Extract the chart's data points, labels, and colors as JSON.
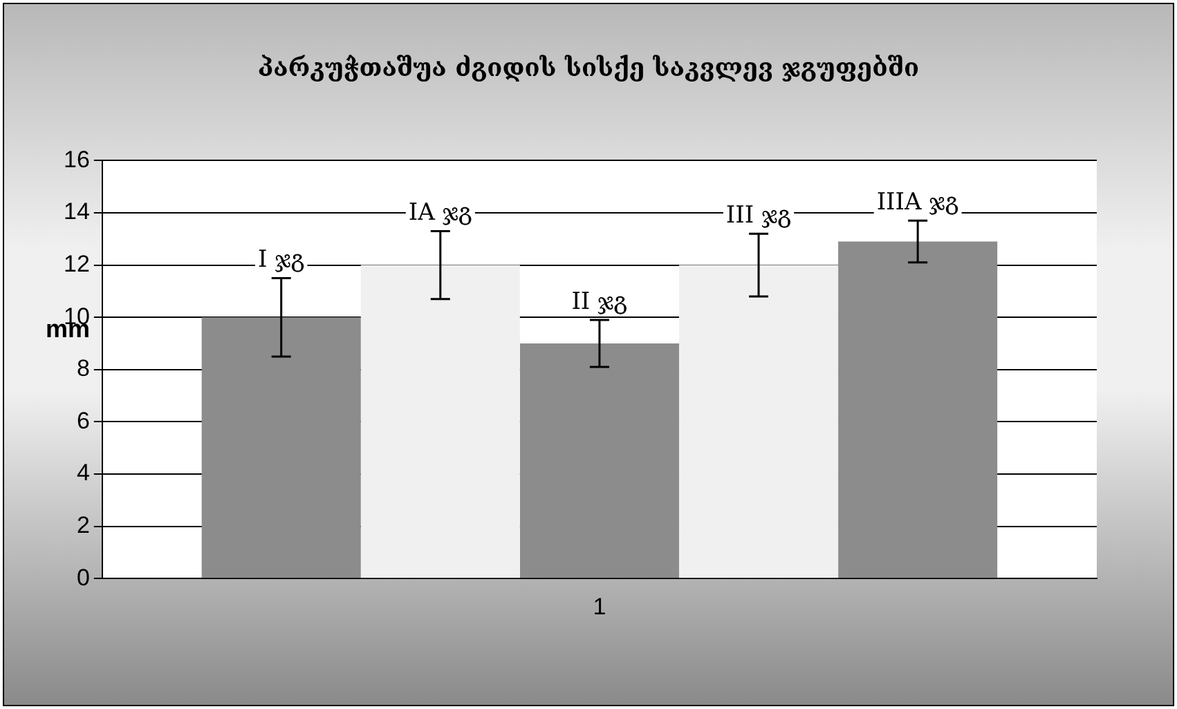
{
  "chart_data": {
    "type": "bar",
    "title": "პარკუჭთაშუა ძგიდის სისქე საკვლევ ჯგუფებში",
    "ylabel": "mm",
    "categories": [
      "1"
    ],
    "series": [
      {
        "name": "I ჯგ",
        "color": "#8c8c8c",
        "values": [
          10
        ],
        "errors": [
          1.5
        ]
      },
      {
        "name": "IA ჯგ",
        "color": "#f0f0f0",
        "values": [
          12
        ],
        "errors": [
          1.3
        ]
      },
      {
        "name": "II ჯგ",
        "color": "#8c8c8c",
        "values": [
          9
        ],
        "errors": [
          0.9
        ]
      },
      {
        "name": "III ჯგ",
        "color": "#f0f0f0",
        "values": [
          12
        ],
        "errors": [
          1.2
        ]
      },
      {
        "name": "IIIA ჯგ",
        "color": "#8c8c8c",
        "values": [
          12.9
        ],
        "errors": [
          0.8
        ]
      }
    ],
    "ylim": [
      0,
      16
    ],
    "yticks": [
      0,
      2,
      4,
      6,
      8,
      10,
      12,
      14,
      16
    ],
    "grid": "y",
    "legend": false
  }
}
